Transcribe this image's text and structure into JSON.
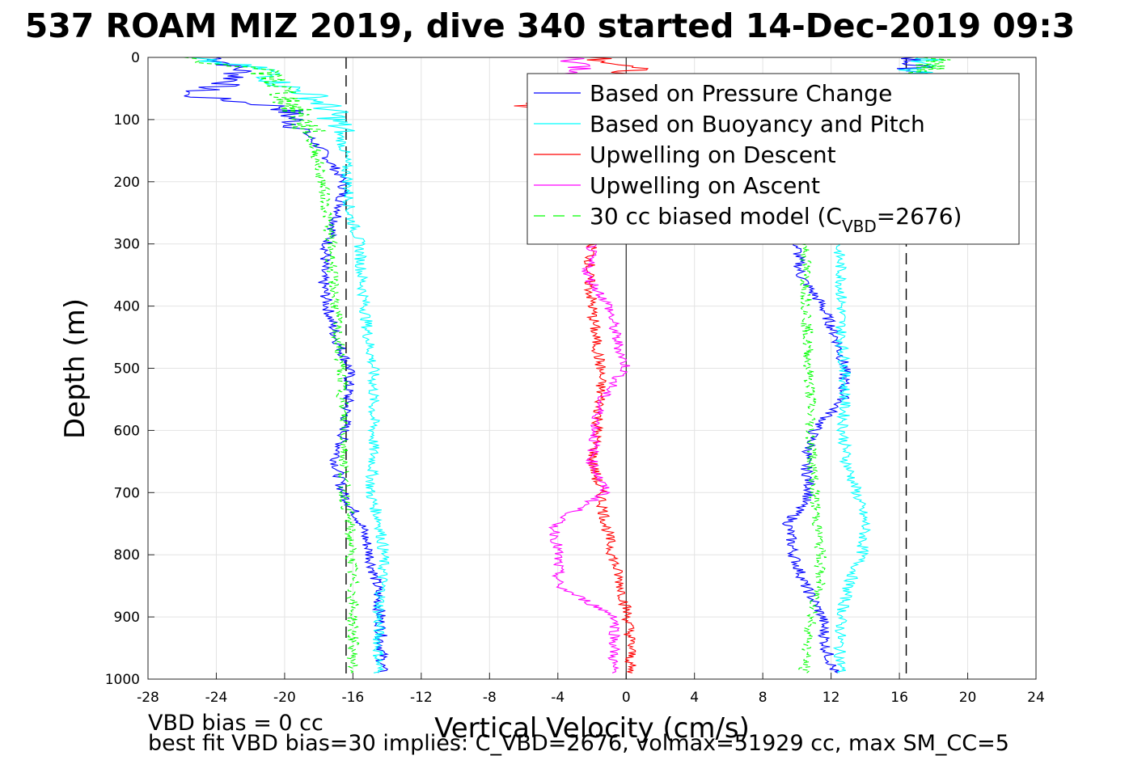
{
  "chart_data": {
    "type": "line",
    "title": "537 ROAM MIZ 2019, dive 340 started 14-Dec-2019 09:3",
    "xlabel": "Vertical Velocity (cm/s)",
    "ylabel": "Depth (m)",
    "xlim": [
      -28,
      24
    ],
    "ylim": [
      0,
      1000
    ],
    "y_reversed": true,
    "grid": true,
    "legend_position": "top-right",
    "xticks": [
      "-28",
      "-24",
      "-20",
      "-16",
      "-12",
      "-8",
      "-4",
      "0",
      "4",
      "8",
      "12",
      "16",
      "20",
      "24"
    ],
    "yticks": [
      "0",
      "100",
      "200",
      "300",
      "400",
      "500",
      "600",
      "700",
      "800",
      "900",
      "1000"
    ],
    "series": [
      {
        "name": "Based on Pressure Change",
        "color": "#0000ff",
        "segments": [
          {
            "depth": [
              0,
              20,
              40,
              60,
              80,
              100,
              150,
              200,
              250,
              300,
              350,
              400,
              450,
              500,
              550,
              600,
              650,
              700,
              750,
              800,
              850,
              900,
              950,
              990
            ],
            "velocity": [
              -24,
              -22.5,
              -23,
              -26,
              -20,
              -19.5,
              -17.8,
              -16.5,
              -16.8,
              -17.5,
              -17.8,
              -17.5,
              -17,
              -16.2,
              -16.3,
              -16.5,
              -17,
              -16.6,
              -15.5,
              -15,
              -14.6,
              -14.4,
              -14.3,
              -14.3
            ]
          },
          {
            "depth": [
              0,
              20,
              50,
              100,
              200,
              300,
              350,
              400,
              450,
              500,
              550,
              600,
              650,
              700,
              750,
              800,
              850,
              900,
              950,
              990
            ],
            "velocity": [
              16.5,
              17,
              15,
              12,
              10,
              10,
              10.2,
              11.5,
              12.3,
              12.8,
              12.7,
              11,
              10.5,
              10.8,
              9.5,
              9.8,
              10.5,
              11.5,
              11.7,
              12.2
            ]
          }
        ]
      },
      {
        "name": "Based on Buoyancy and Pitch",
        "color": "#00ffff",
        "segments": [
          {
            "depth": [
              0,
              20,
              40,
              60,
              80,
              100,
              150,
              200,
              250,
              300,
              350,
              400,
              450,
              500,
              550,
              600,
              650,
              700,
              750,
              800,
              850,
              900,
              950,
              990
            ],
            "velocity": [
              -26,
              -21,
              -20.5,
              -18.5,
              -17.5,
              -17,
              -16.5,
              -16.3,
              -16.2,
              -15.6,
              -15.5,
              -15.3,
              -15.1,
              -14.8,
              -14.8,
              -14.8,
              -14.8,
              -15,
              -14.4,
              -14.2,
              -14.3,
              -14.5,
              -14.5,
              -14.5
            ]
          },
          {
            "depth": [
              0,
              20,
              50,
              100,
              200,
              300,
              350,
              400,
              450,
              500,
              550,
              600,
              650,
              700,
              750,
              800,
              850,
              900,
              950,
              990
            ],
            "velocity": [
              18,
              17,
              16,
              14.5,
              13,
              12.4,
              12.6,
              12.6,
              12.6,
              12.8,
              12.8,
              12.7,
              12.9,
              13.5,
              14,
              13.8,
              13,
              12.6,
              12.5,
              12.6
            ]
          }
        ]
      },
      {
        "name": "Upwelling on Descent",
        "color": "#ff0000",
        "segments": [
          {
            "depth": [
              0,
              20,
              40,
              60,
              80,
              100,
              200,
              300,
              350,
              400,
              450,
              500,
              550,
              600,
              650,
              700,
              750,
              800,
              850,
              900,
              950,
              990
            ],
            "velocity": [
              -2,
              0.5,
              -3,
              -5,
              -6,
              -3,
              -2,
              -2,
              -2.2,
              -2,
              -1.8,
              -1.5,
              -1.5,
              -1.7,
              -2,
              -1.5,
              -1.2,
              -0.8,
              -0.3,
              0.1,
              0.3,
              0.2
            ]
          }
        ]
      },
      {
        "name": "Upwelling on Ascent",
        "color": "#ff00ff",
        "segments": [
          {
            "depth": [
              0,
              20,
              40,
              60,
              80,
              100,
              200,
              300,
              350,
              400,
              450,
              500,
              550,
              600,
              650,
              700,
              750,
              800,
              850,
              900,
              950,
              990
            ],
            "velocity": [
              -3,
              -2.5,
              -3,
              -2,
              -4,
              -2,
              -2,
              -2,
              -2.3,
              -1,
              -0.6,
              0,
              -1.5,
              -1.8,
              -2,
              -1.2,
              -4.2,
              -4,
              -4,
              -0.6,
              -0.7,
              -0.8
            ]
          }
        ]
      },
      {
        "name": "30 cc biased model (C_VBD=2676)",
        "color": "#00ff00",
        "dashed": true,
        "segments": [
          {
            "depth": [
              0,
              20,
              40,
              60,
              80,
              100,
              150,
              200,
              250,
              300,
              350,
              400,
              450,
              500,
              550,
              600,
              650,
              700,
              750,
              800,
              850,
              900,
              950,
              990
            ],
            "velocity": [
              -26,
              -21.5,
              -20.5,
              -20,
              -19.5,
              -19,
              -18.2,
              -17.8,
              -17.5,
              -17.3,
              -17.2,
              -17,
              -16.9,
              -16.7,
              -16.6,
              -16.5,
              -16.5,
              -16.5,
              -16.2,
              -16.1,
              -16,
              -16,
              -16,
              -16
            ]
          },
          {
            "depth": [
              0,
              20,
              50,
              100,
              200,
              300,
              350,
              400,
              450,
              500,
              550,
              600,
              650,
              700,
              750,
              800,
              850,
              900,
              950,
              990
            ],
            "velocity": [
              18,
              17.5,
              15,
              13,
              11.5,
              10.5,
              10.5,
              10.6,
              10.6,
              10.7,
              10.8,
              10.8,
              10.9,
              11,
              11.2,
              11.4,
              11.3,
              10.9,
              10.6,
              10.4
            ]
          }
        ]
      }
    ],
    "reference_lines": [
      {
        "orientation": "vertical",
        "x": 0,
        "style": "solid",
        "color": "#000000"
      },
      {
        "orientation": "vertical",
        "x": -16.4,
        "style": "dashed",
        "color": "#000000"
      },
      {
        "orientation": "vertical",
        "x": 16.4,
        "style": "dashed",
        "color": "#000000"
      }
    ],
    "legend": {
      "entries": [
        {
          "main": "Based on Pressure Change",
          "color": "#0000ff",
          "dashed": false
        },
        {
          "main": "Based on Buoyancy and Pitch",
          "color": "#00ffff",
          "dashed": false
        },
        {
          "main": "Upwelling on Descent",
          "color": "#ff0000",
          "dashed": false
        },
        {
          "main": "Upwelling on Ascent",
          "color": "#ff00ff",
          "dashed": false
        },
        {
          "main": "30 cc biased model (C",
          "sub": "VBD",
          "tail": "=2676)",
          "color": "#00ff00",
          "dashed": true
        }
      ]
    }
  },
  "footnotes": {
    "line1": "VBD bias = 0 cc",
    "line2": "best fit VBD bias=30 implies: C_VBD=2676, volmax=51929 cc, max SM_CC=5"
  }
}
